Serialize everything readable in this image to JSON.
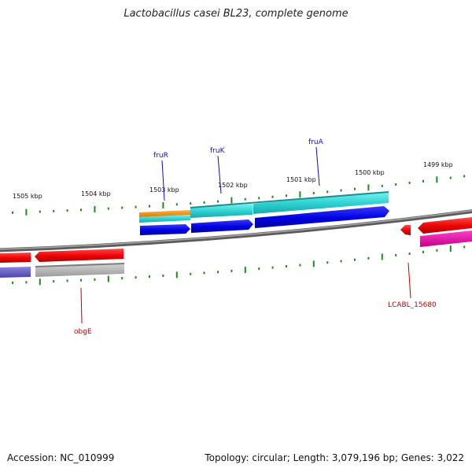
{
  "title": "Lactobacillus casei BL23, complete genome",
  "footer": {
    "accession": "Accession: NC_010999",
    "summary": "Topology: circular; Length: 3,079,196 bp; Genes: 3,022"
  },
  "colors": {
    "backbone": "#7a7a7a",
    "tick": "#1e8a1e",
    "forward_label": "#1010b0",
    "reverse_label": "#c00000"
  },
  "scale_labels": [
    "1505 kbp",
    "1504 kbp",
    "1503 kbp",
    "1502 kbp",
    "1501 kbp",
    "1500 kbp",
    "1499 kbp"
  ],
  "gene_labels": [
    {
      "id": "fruR",
      "text": "fruR",
      "strand": "forward"
    },
    {
      "id": "fruK",
      "text": "fruK",
      "strand": "forward"
    },
    {
      "id": "fruA",
      "text": "fruA",
      "strand": "forward"
    },
    {
      "id": "obgE",
      "text": "obgE",
      "strand": "reverse"
    },
    {
      "id": "LCABL_15680",
      "text": "LCABL_15680",
      "strand": "reverse"
    }
  ]
}
